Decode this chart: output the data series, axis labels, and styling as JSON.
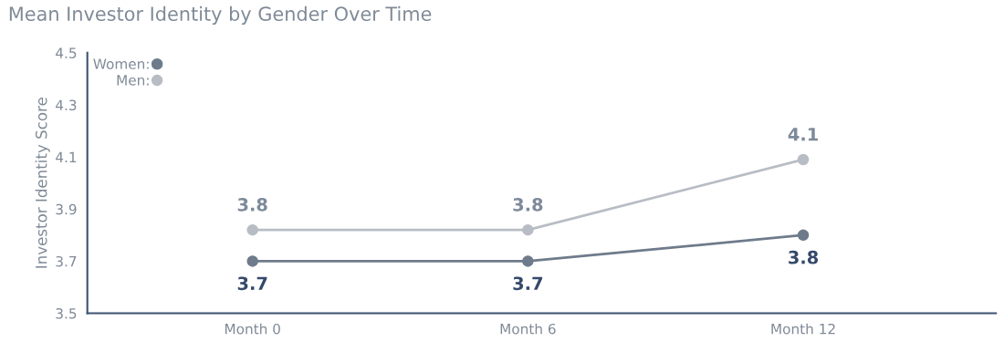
{
  "chart_data": {
    "type": "line",
    "title": "Mean Investor Identity by Gender Over Time",
    "ylabel": "Investor Identity Score",
    "categories": [
      "Month 0",
      "Month 6",
      "Month 12"
    ],
    "series": [
      {
        "name": "Women:",
        "color": "#6e7b8b",
        "values": [
          3.7,
          3.7,
          3.8
        ],
        "value_labels": [
          "3.7",
          "3.7",
          "3.8"
        ]
      },
      {
        "name": "Men:",
        "color": "#b8bdc5",
        "values": [
          3.82,
          3.82,
          4.09
        ],
        "value_labels": [
          "3.8",
          "3.8",
          "4.1"
        ]
      }
    ],
    "ylim": [
      3.5,
      4.5
    ],
    "yticks": [
      3.5,
      3.7,
      3.9,
      4.1,
      4.3,
      4.5
    ],
    "grid": false,
    "legend": "top left",
    "marker": "circle",
    "line_style": "solid"
  }
}
